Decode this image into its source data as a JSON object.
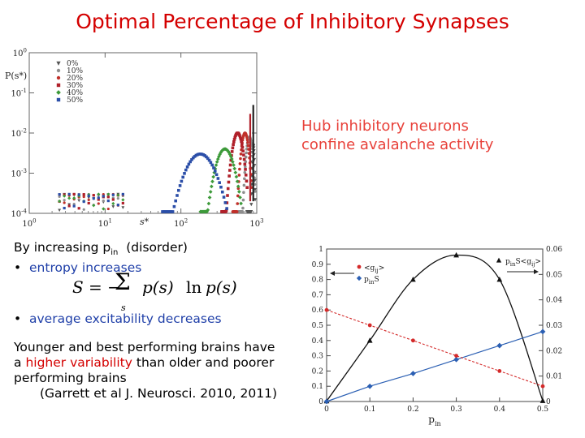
{
  "slide": {
    "title": "Optimal Percentage of Inhibitory Synapses",
    "callout": [
      "Hub inhibitory neurons",
      "confine avalanche activity"
    ],
    "intro": {
      "prefix": "By increasing p",
      "sub": "in",
      "suffix": "(disorder)"
    },
    "bullet1": "entropy increases",
    "equation": {
      "lhs": "S = −",
      "sum": "Σ",
      "index": "s",
      "term1": "p(s)",
      "ln": "ln",
      "term2": "p(s)"
    },
    "bullet2": "average excitability decreases",
    "para": {
      "line1": "Younger and best performing brains have",
      "line2_a": "a ",
      "line2_red": "higher variability",
      "line2_b": " than older and poorer",
      "line3": "performing brains"
    },
    "citation": "(Garrett et al J. Neurosci. 2010, 2011)",
    "bullet_char": "•"
  },
  "chart_data": [
    {
      "type": "scatter",
      "y_axis_label": "P(s*)",
      "x_axis_label": "s*",
      "x_scale": "log",
      "y_scale": "log",
      "xlim": [
        1,
        1000
      ],
      "ylim": [
        0.0001,
        1
      ],
      "x_ticks": [
        {
          "base": "10",
          "exp": "0"
        },
        {
          "base": "10",
          "exp": "1"
        },
        {
          "base": "10",
          "exp": "2"
        },
        {
          "base": "10",
          "exp": "3"
        }
      ],
      "y_ticks": [
        {
          "base": "10",
          "exp": "0"
        },
        {
          "base": "10",
          "exp": "-1"
        },
        {
          "base": "10",
          "exp": "-2"
        },
        {
          "base": "10",
          "exp": "-3"
        },
        {
          "base": "10",
          "exp": "-4"
        }
      ],
      "legend_position": "top-left",
      "series": [
        {
          "name": "0%",
          "color": "#555555",
          "marker": "triangle-down"
        },
        {
          "name": "10%",
          "color": "#8e8e8e",
          "marker": "circle"
        },
        {
          "name": "20%",
          "color": "#c0302a",
          "marker": "circle"
        },
        {
          "name": "30%",
          "color": "#b0202a",
          "marker": "square"
        },
        {
          "name": "40%",
          "color": "#3d9a3a",
          "marker": "diamond"
        },
        {
          "name": "50%",
          "color": "#2b4ea8",
          "marker": "square"
        }
      ],
      "peaks": [
        {
          "series": "0%",
          "x": 900,
          "y": 0.005
        },
        {
          "series": "10%",
          "x": 800,
          "y": 0.008
        },
        {
          "series": "20%",
          "x": 700,
          "y": 0.01
        },
        {
          "series": "30%",
          "x": 560,
          "y": 0.01
        },
        {
          "series": "40%",
          "x": 380,
          "y": 0.004
        },
        {
          "series": "50%",
          "x": 180,
          "y": 0.003
        }
      ]
    },
    {
      "type": "line",
      "xlabel": {
        "base": "p",
        "sub": "in"
      },
      "xlim": [
        0,
        0.5
      ],
      "ylim_left": [
        0,
        1
      ],
      "ylim_right": [
        0,
        0.06
      ],
      "x_ticks": [
        "0",
        "0.1",
        "0.2",
        "0.3",
        "0.4",
        "0.5"
      ],
      "y_ticks_left": [
        "0",
        "0.1",
        "0.2",
        "0.3",
        "0.4",
        "0.5",
        "0.6",
        "0.7",
        "0.8",
        "0.9",
        "1"
      ],
      "y_ticks_right": [
        "0",
        "0.01",
        "0.02",
        "0.03",
        "0.04",
        "0.05",
        "0.06"
      ],
      "x": [
        0,
        0.1,
        0.2,
        0.3,
        0.4,
        0.5
      ],
      "series": [
        {
          "name": "p_in S<g_ij>",
          "label": {
            "base": "p",
            "sub": "in",
            "tail": "S<g",
            "tail_sub": "ij",
            "end": ">"
          },
          "axis": "left",
          "color": "#111111",
          "marker": "triangle",
          "values": [
            0.003,
            0.4,
            0.8,
            0.96,
            0.8,
            0.005
          ]
        },
        {
          "name": "p_in S",
          "label": {
            "base": "p",
            "sub": "in",
            "tail": "S",
            "tail_sub": "",
            "end": ""
          },
          "axis": "right",
          "color": "#2b5fb3",
          "marker": "diamond",
          "values": [
            0,
            0.006,
            0.011,
            0.0165,
            0.022,
            0.0275
          ]
        },
        {
          "name": "<g_ij>",
          "label": {
            "base": "<g",
            "sub": "ij",
            "tail": ">",
            "tail_sub": "",
            "end": ""
          },
          "axis": "left",
          "color": "#d42a2a",
          "marker": "circle",
          "values": [
            0.6,
            0.5,
            0.4,
            0.3,
            0.2,
            0.1
          ]
        }
      ]
    }
  ]
}
